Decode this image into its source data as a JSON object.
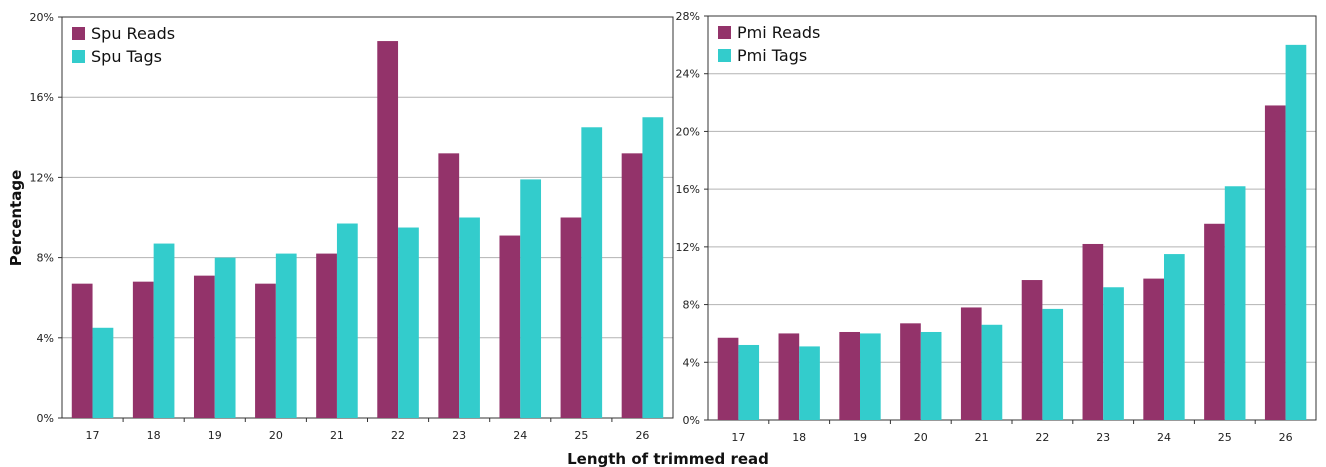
{
  "figure": {
    "ylabel": "Percentage",
    "xlabel": "Length of trimmed read"
  },
  "colors": {
    "reads": "#93336a",
    "tags": "#33cccc"
  },
  "chart_data": [
    {
      "type": "bar",
      "title": "",
      "categories": [
        "17",
        "18",
        "19",
        "20",
        "21",
        "22",
        "23",
        "24",
        "25",
        "26"
      ],
      "y_ticks": [
        "0%",
        "4%",
        "8%",
        "12%",
        "16%",
        "20%"
      ],
      "ylim": [
        0,
        20
      ],
      "grid": true,
      "legend_position": "top-left",
      "series": [
        {
          "name": "Spu Reads",
          "values": [
            6.7,
            6.8,
            7.1,
            6.7,
            8.2,
            18.8,
            13.2,
            9.1,
            10.0,
            13.2
          ]
        },
        {
          "name": "Spu Tags",
          "values": [
            4.5,
            8.7,
            8.0,
            8.2,
            9.7,
            9.5,
            10.0,
            11.9,
            14.5,
            15.0
          ]
        }
      ]
    },
    {
      "type": "bar",
      "title": "",
      "categories": [
        "17",
        "18",
        "19",
        "20",
        "21",
        "22",
        "23",
        "24",
        "25",
        "26"
      ],
      "y_ticks": [
        "0%",
        "4%",
        "8%",
        "12%",
        "16%",
        "20%",
        "24%",
        "28%"
      ],
      "ylim": [
        0,
        28
      ],
      "grid": true,
      "legend_position": "top-left",
      "series": [
        {
          "name": "Pmi Reads",
          "values": [
            5.7,
            6.0,
            6.1,
            6.7,
            7.8,
            9.7,
            12.2,
            9.8,
            13.6,
            21.8
          ]
        },
        {
          "name": "Pmi Tags",
          "values": [
            5.2,
            5.1,
            6.0,
            6.1,
            6.6,
            7.7,
            9.2,
            11.5,
            16.2,
            26.0
          ]
        }
      ]
    }
  ]
}
